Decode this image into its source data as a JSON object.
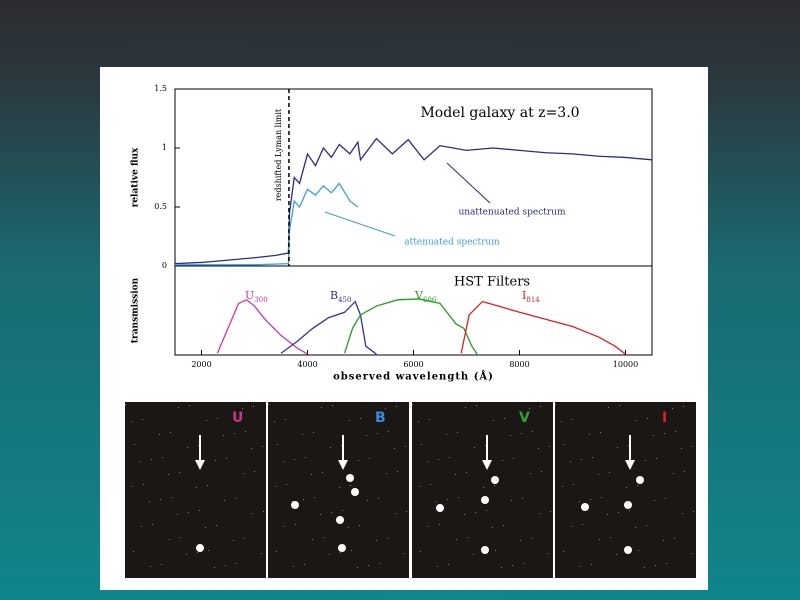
{
  "chart_data": [
    {
      "type": "line",
      "title": "Model galaxy at z=3.0",
      "ylabel": "relative flux",
      "annotations": {
        "lyman": "redshifted Lyman limit",
        "lyman_x": 3650,
        "unatt": "unattenuated spectrum",
        "att": "attenuated spectrum"
      },
      "xlim": [
        1500,
        10500
      ],
      "ylim": [
        0,
        1.5
      ],
      "yticks": [
        0,
        0.5,
        1,
        1.5
      ],
      "series": [
        {
          "name": "unattenuated",
          "color": "#2a2a8a",
          "x": [
            1500,
            2000,
            2500,
            3000,
            3400,
            3640,
            3660,
            3750,
            3850,
            4000,
            4150,
            4300,
            4450,
            4600,
            4800,
            4950,
            5000,
            5300,
            5600,
            5900,
            6200,
            6500,
            7000,
            7500,
            8000,
            8500,
            9000,
            9500,
            10000,
            10500
          ],
          "values": [
            0.02,
            0.03,
            0.05,
            0.07,
            0.09,
            0.11,
            0.45,
            0.75,
            0.7,
            0.95,
            0.85,
            1.0,
            0.92,
            1.03,
            0.95,
            1.05,
            0.9,
            1.08,
            0.95,
            1.07,
            0.9,
            1.02,
            0.98,
            1.0,
            0.98,
            0.96,
            0.95,
            0.93,
            0.92,
            0.9
          ]
        },
        {
          "name": "attenuated",
          "color": "#3ca0e0",
          "x": [
            1500,
            3000,
            3640,
            3660,
            3750,
            3850,
            4000,
            4150,
            4300,
            4450,
            4600,
            4800,
            4950
          ],
          "values": [
            0.01,
            0.01,
            0.02,
            0.3,
            0.55,
            0.5,
            0.65,
            0.6,
            0.68,
            0.62,
            0.7,
            0.55,
            0.5
          ]
        }
      ]
    },
    {
      "type": "line",
      "title": "HST Filters",
      "ylabel": "transmission",
      "xlabel": "observed wavelength (Å)",
      "xlim": [
        1500,
        10500
      ],
      "ylim": [
        0,
        1
      ],
      "xticks": [
        2000,
        4000,
        6000,
        8000,
        10000
      ],
      "series": [
        {
          "name": "U",
          "subscript": "300",
          "color": "#e0309a",
          "x": [
            2300,
            2500,
            2700,
            2850,
            3000,
            3200,
            3500,
            3800,
            4000
          ],
          "values": [
            0.02,
            0.3,
            0.58,
            0.62,
            0.55,
            0.4,
            0.22,
            0.08,
            0.01
          ]
        },
        {
          "name": "B",
          "subscript": "450",
          "color": "#3030a0",
          "x": [
            3500,
            3800,
            4100,
            4400,
            4700,
            4900,
            5000,
            5100,
            5300
          ],
          "values": [
            0.02,
            0.15,
            0.3,
            0.42,
            0.48,
            0.6,
            0.45,
            0.1,
            0.01
          ]
        },
        {
          "name": "V",
          "subscript": "606",
          "color": "#20a020",
          "x": [
            4700,
            4850,
            5000,
            5300,
            5700,
            6100,
            6500,
            6800,
            6950,
            7100,
            7200
          ],
          "values": [
            0.02,
            0.3,
            0.45,
            0.55,
            0.62,
            0.63,
            0.58,
            0.35,
            0.3,
            0.1,
            0.01
          ]
        },
        {
          "name": "I",
          "subscript": "814",
          "color": "#e02020",
          "x": [
            6900,
            7050,
            7300,
            7600,
            8000,
            8500,
            9000,
            9500,
            9800,
            10000
          ],
          "values": [
            0.02,
            0.45,
            0.6,
            0.55,
            0.48,
            0.4,
            0.32,
            0.2,
            0.1,
            0.01
          ]
        }
      ]
    }
  ],
  "panels": [
    {
      "label": "U",
      "color": "#d03090"
    },
    {
      "label": "B",
      "color": "#3a8ae0"
    },
    {
      "label": "V",
      "color": "#30a030"
    },
    {
      "label": "I",
      "color": "#e02020"
    }
  ]
}
